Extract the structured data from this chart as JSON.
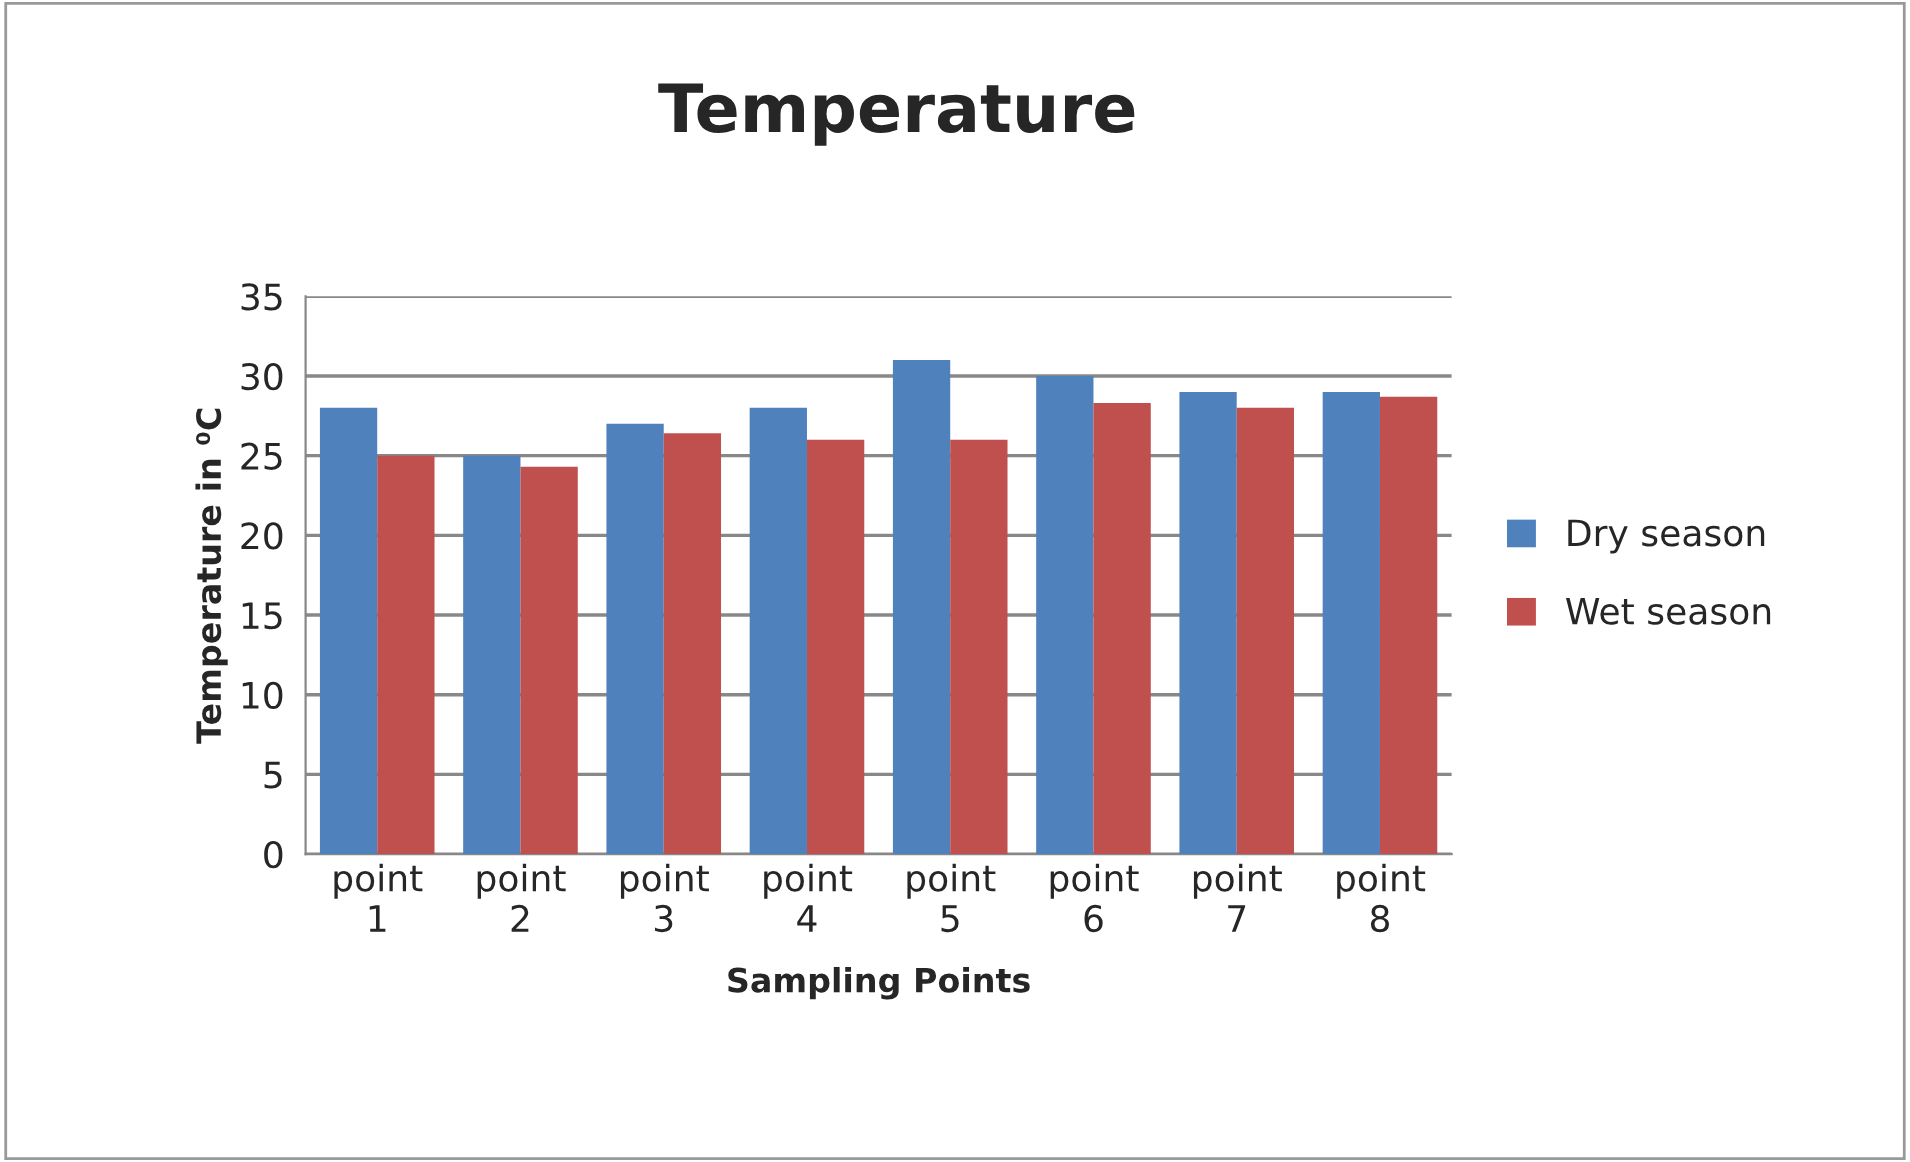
{
  "chart_data": {
    "type": "bar",
    "title": "Temperature",
    "xlabel": "Sampling Points",
    "ylabel": "Temperature in ⁰C",
    "categories": [
      "point\n1",
      "point\n2",
      "point\n3",
      "point\n4",
      "point\n5",
      "point\n6",
      "point\n7",
      "point\n8"
    ],
    "series": [
      {
        "name": "Dry season",
        "color": "#4f81bd",
        "values": [
          28,
          25,
          27,
          28,
          31,
          30,
          29,
          29
        ]
      },
      {
        "name": "Wet season",
        "color": "#c0504d",
        "values": [
          25,
          24.3,
          26.4,
          26,
          26,
          28.3,
          28,
          28.7
        ]
      }
    ],
    "ylim": [
      0,
      35
    ],
    "yticks": [
      0,
      5,
      10,
      15,
      20,
      25,
      30,
      35
    ],
    "grid": "y",
    "legend": "right"
  }
}
